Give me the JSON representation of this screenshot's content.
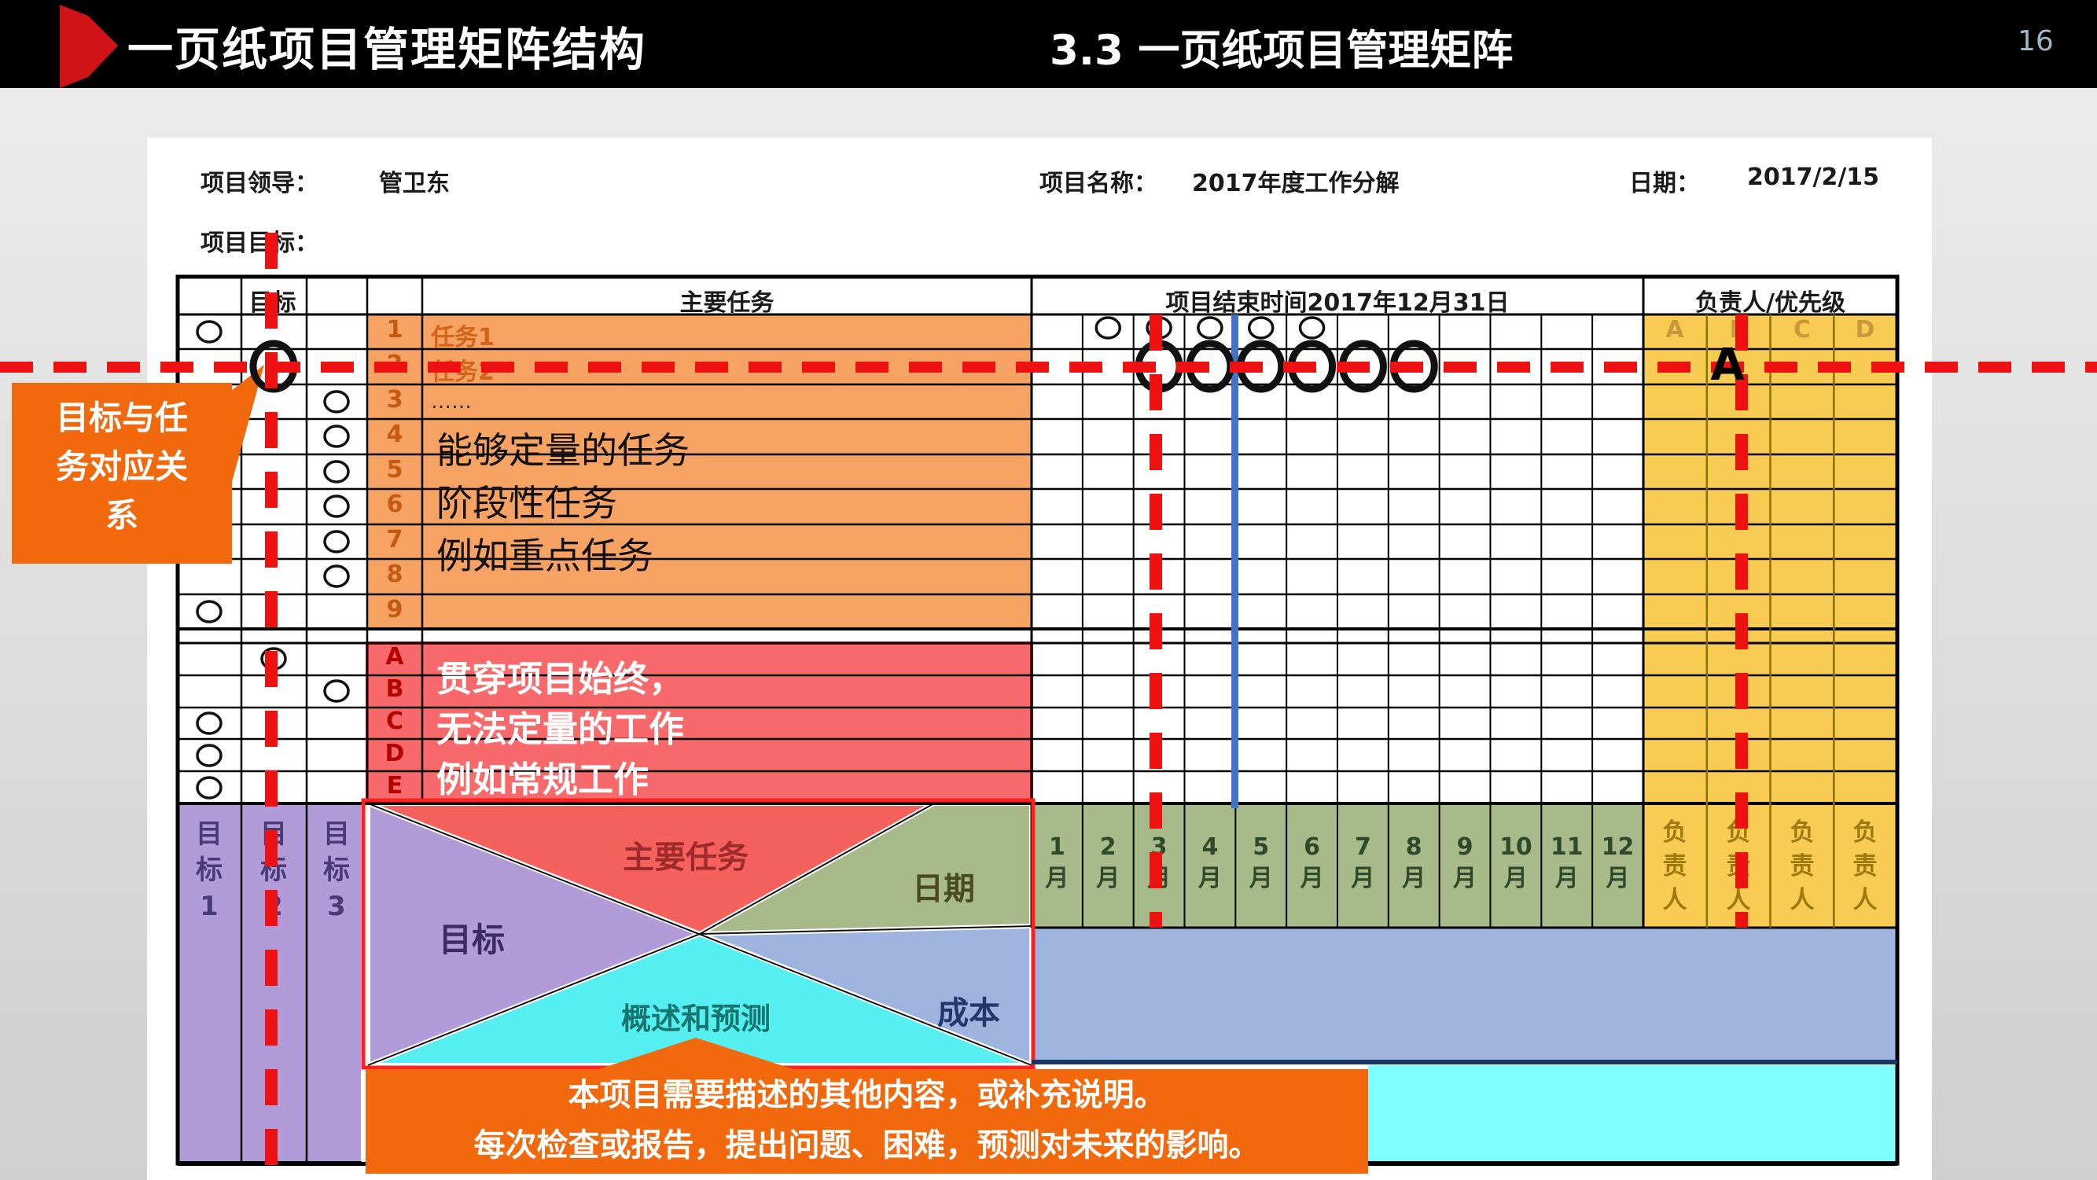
{
  "header_bar": {
    "title": "一页纸项目管理矩阵结构",
    "section_title": "3.3 一页纸项目管理矩阵",
    "page_number": "16"
  },
  "sheet_header": {
    "leader_label": "项目领导：",
    "leader_value": "管卫东",
    "project_label": "项目名称：",
    "project_value": "2017年度工作分解",
    "date_label": "日期：",
    "date_value": "2017/2/15",
    "goal_label": "项目目标："
  },
  "table": {
    "headers": {
      "goal": "目标",
      "main_task": "主要任务",
      "timeline": "项目结束时间2017年12月31日",
      "owner_priority": "负责人/优先级"
    },
    "task_row_numbers": [
      "1",
      "2",
      "3",
      "4",
      "5",
      "6",
      "7",
      "8",
      "9"
    ],
    "task_texts": {
      "row1": "任务1",
      "row2": "任务2",
      "row3": "……"
    },
    "routine_row_letters": [
      "A",
      "B",
      "C",
      "D",
      "E"
    ],
    "priority_letters": [
      "A",
      "B",
      "C",
      "D"
    ],
    "month_numbers": [
      "1",
      "2",
      "3",
      "4",
      "5",
      "6",
      "7",
      "8",
      "9",
      "10",
      "11",
      "12"
    ],
    "month_suffix": "月",
    "owner_columns": [
      "负责人",
      "负责人",
      "负责人",
      "负责人"
    ],
    "goal_columns": [
      "目标1",
      "目标2",
      "目标3"
    ],
    "quadrant_labels": {
      "goal": "目标",
      "main_task": "主要任务",
      "date": "日期",
      "overview": "概述和预测",
      "cost": "成本"
    },
    "marker_letter": "A"
  },
  "overlays": {
    "quant_tasks": [
      "能够定量的任务",
      "阶段性任务",
      "例如重点任务"
    ],
    "routine_tasks": [
      "贯穿项目始终，",
      "无法定量的工作",
      "例如常规工作"
    ],
    "callout_left": "目标与任务对应关系",
    "callout_bottom_line1": "本项目需要描述的其他内容，或补充说明。",
    "callout_bottom_line2": "每次检查或报告，提出问题、困难，预测对未来的影响。"
  },
  "marks": {
    "thin_goal_circles": [
      {
        "row": "1",
        "goal_col": 1
      },
      {
        "row": "3",
        "goal_col": 3
      },
      {
        "row": "4",
        "goal_col": 3
      },
      {
        "row": "5",
        "goal_col": 3
      },
      {
        "row": "6",
        "goal_col": 3
      },
      {
        "row": "7",
        "goal_col": 3
      },
      {
        "row": "8",
        "goal_col": 3
      },
      {
        "row": "9",
        "goal_col": 1
      },
      {
        "row": "A",
        "goal_col": 2
      },
      {
        "row": "B",
        "goal_col": 3
      },
      {
        "row": "C",
        "goal_col": 1
      },
      {
        "row": "D",
        "goal_col": 1
      },
      {
        "row": "E",
        "goal_col": 1
      }
    ],
    "thin_month_circles": {
      "row": "1",
      "month_cols": [
        2,
        3,
        4,
        5,
        6
      ]
    },
    "bold_goal_circle": {
      "row": "2",
      "goal_col": 2
    },
    "bold_month_circles": {
      "row": "2",
      "month_cols": [
        3,
        4,
        5,
        6,
        7,
        8
      ]
    }
  },
  "colors": {
    "accent_red": "#cf1418",
    "dashed_line_red": "#ee1111",
    "timeline_blue": "#4472c4",
    "task_orange": "#f5a262",
    "routine_red": "#f8696b",
    "owner_yellow": "#f8cc52",
    "goal_purple": "#b19cd9",
    "month_green": "#a8ba8a",
    "cost_blue": "#9fb3df",
    "overview_cyan": "#55eff2",
    "bottom_cyan": "#7fffff",
    "callout_orange": "#f2690d"
  }
}
